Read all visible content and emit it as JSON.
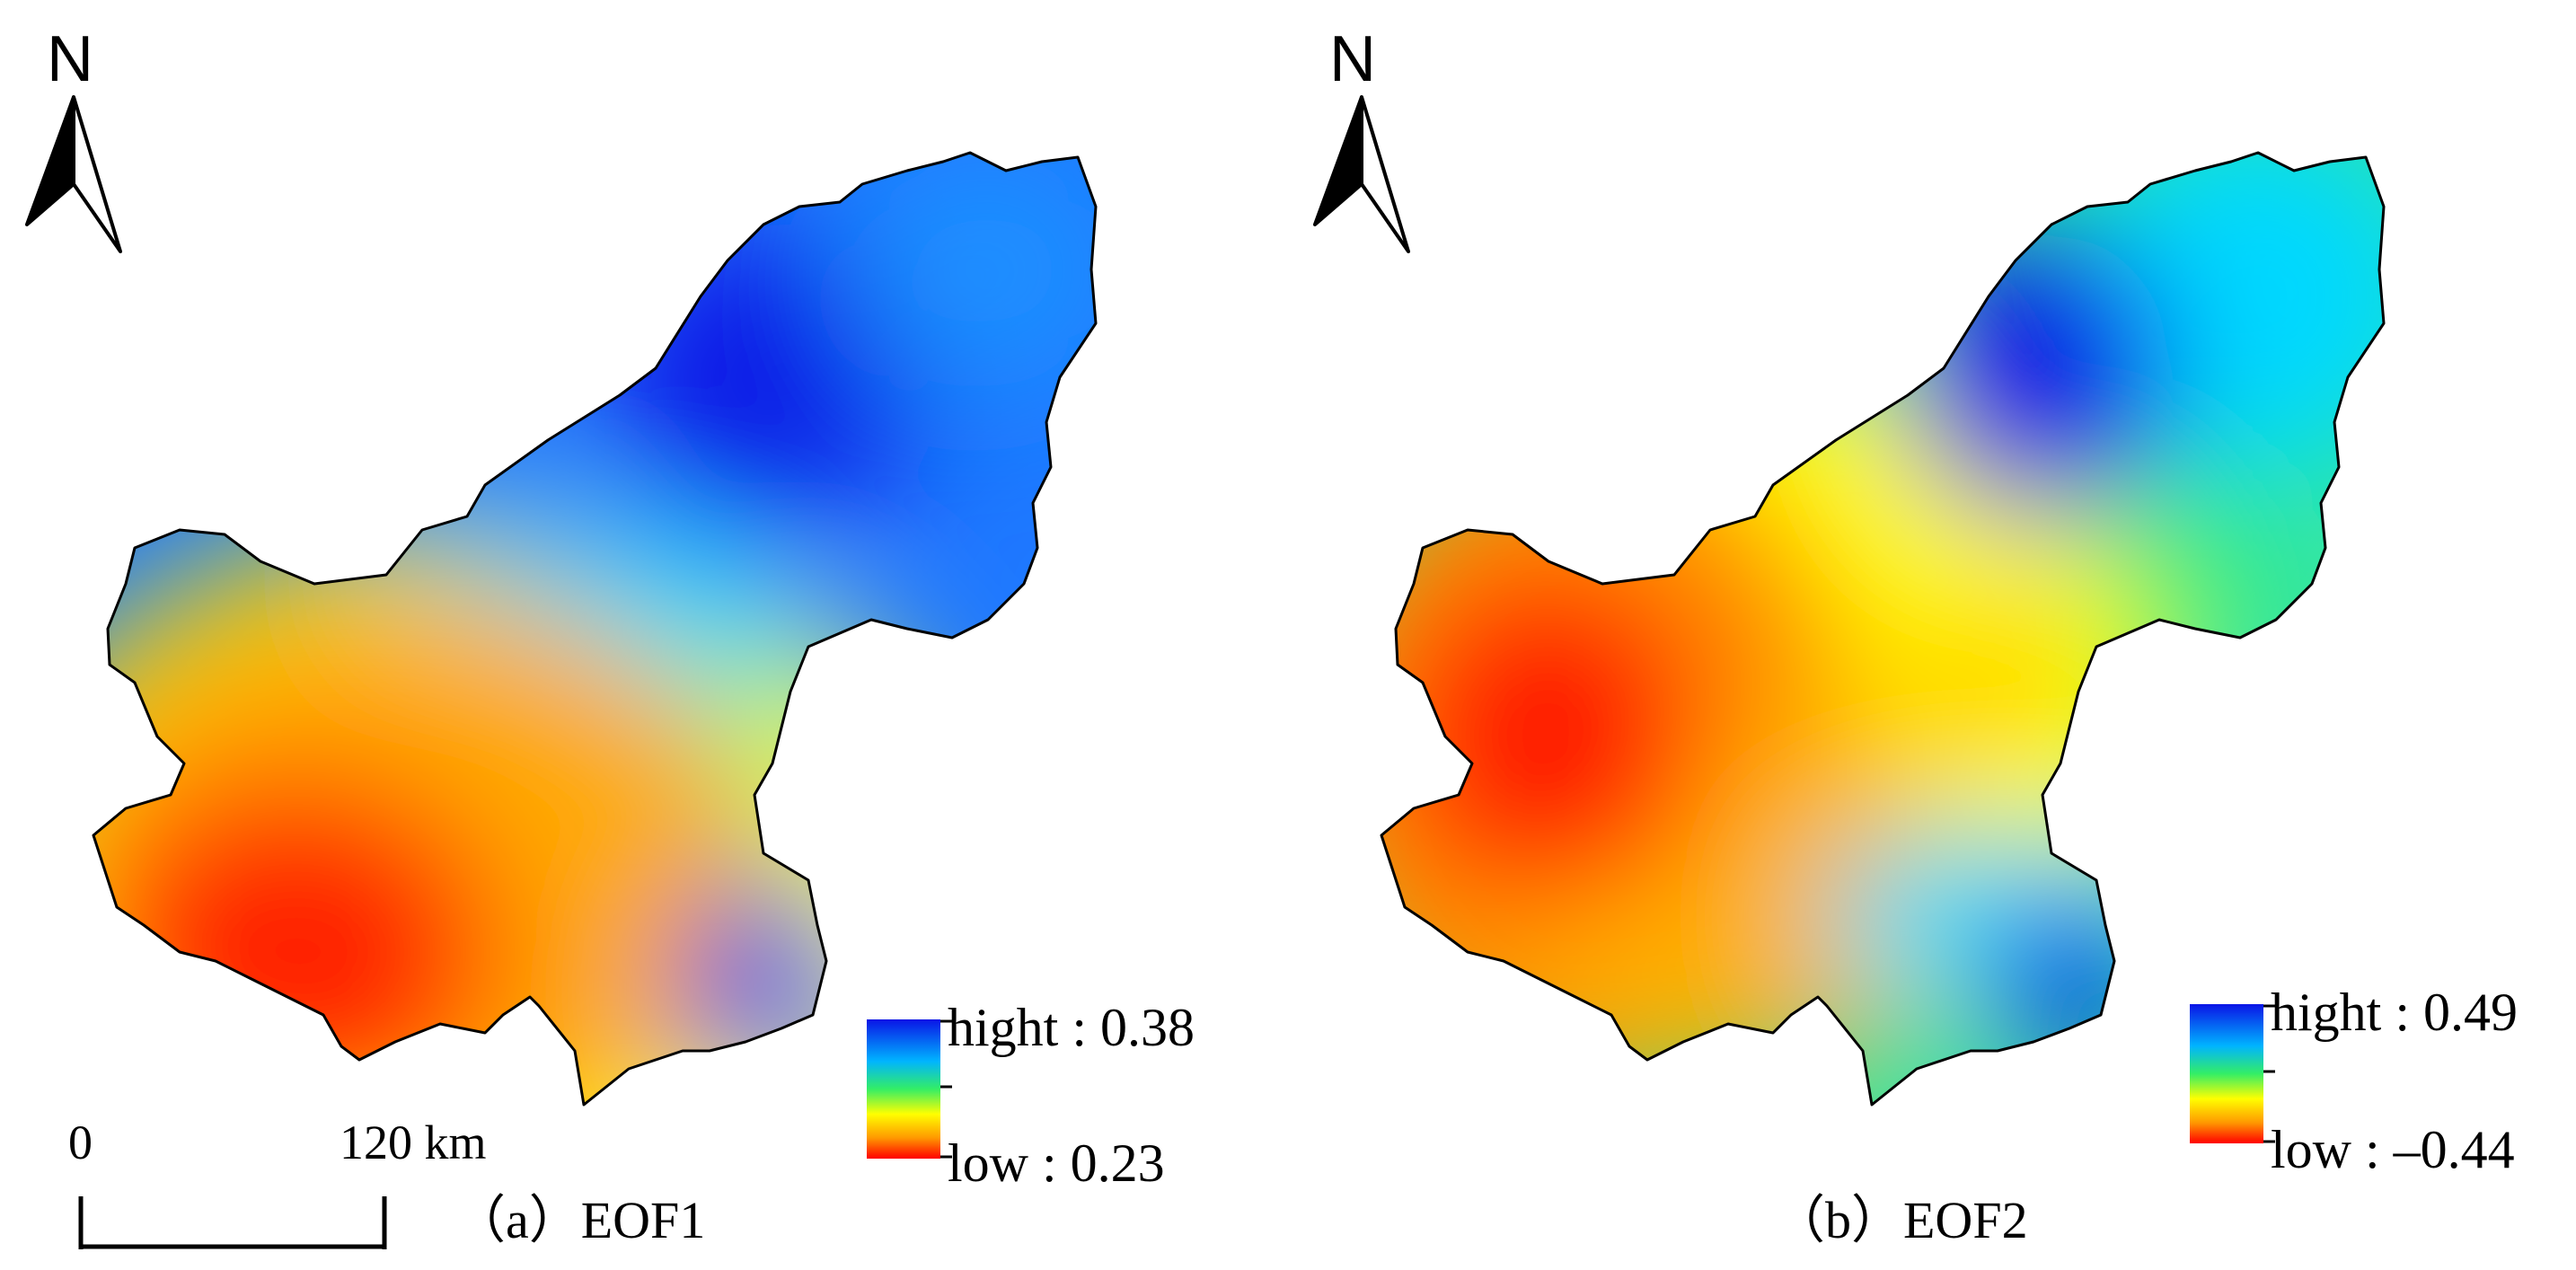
{
  "panels": [
    {
      "id": "a",
      "caption": "（a）EOF1",
      "north_label": "N",
      "legend": {
        "high": "hight : 0.38",
        "low": "low : 0.23"
      }
    },
    {
      "id": "b",
      "caption": "（b）EOF2",
      "north_label": "N",
      "legend": {
        "high": "hight : 0.49",
        "low": "low : –0.44"
      }
    }
  ],
  "scalebar": {
    "start": "0",
    "end": "120",
    "unit": "km"
  },
  "colors": {
    "high": "#0a14e6",
    "mid_high": "#00e6ff",
    "mid": "#33ee66",
    "mid_low": "#ffff00",
    "low": "#ff0000"
  }
}
